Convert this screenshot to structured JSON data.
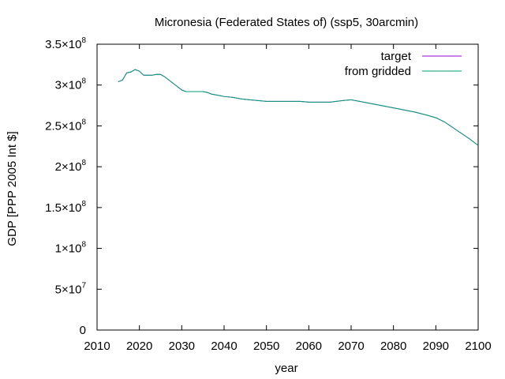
{
  "chart_data": {
    "type": "line",
    "title": "Micronesia (Federated States of) (ssp5, 30arcmin)",
    "xlabel": "year",
    "ylabel": "GDP [PPP 2005 Int $]",
    "xlim": [
      2010,
      2100
    ],
    "ylim": [
      0,
      350000000
    ],
    "x_ticks": [
      2010,
      2020,
      2030,
      2040,
      2050,
      2060,
      2070,
      2080,
      2090,
      2100
    ],
    "x_tick_labels": [
      "2010",
      "2020",
      "2030",
      "2040",
      "2050",
      "2060",
      "2070",
      "2080",
      "2090",
      "2100"
    ],
    "y_ticks": [
      0,
      50000000,
      100000000,
      150000000,
      200000000,
      250000000,
      300000000,
      350000000
    ],
    "y_tick_labels": [
      {
        "mantissa": "0",
        "exponent": ""
      },
      {
        "mantissa": "5×10",
        "exponent": "7"
      },
      {
        "mantissa": "1×10",
        "exponent": "8"
      },
      {
        "mantissa": "1.5×10",
        "exponent": "8"
      },
      {
        "mantissa": "2×10",
        "exponent": "8"
      },
      {
        "mantissa": "2.5×10",
        "exponent": "8"
      },
      {
        "mantissa": "3×10",
        "exponent": "8"
      },
      {
        "mantissa": "3.5×10",
        "exponent": "8"
      }
    ],
    "grid": false,
    "legend_position": "top-right",
    "series": [
      {
        "name": "target",
        "color": "#9400d3",
        "x": [
          2015,
          2016,
          2017,
          2018,
          2019,
          2020,
          2021,
          2022,
          2023,
          2024,
          2025,
          2026,
          2027,
          2028,
          2029,
          2030,
          2031,
          2032,
          2033,
          2034,
          2035,
          2036,
          2037,
          2038,
          2039,
          2040,
          2042,
          2044,
          2046,
          2048,
          2050,
          2055,
          2058,
          2060,
          2065,
          2068,
          2070,
          2075,
          2080,
          2085,
          2088,
          2090,
          2092,
          2094,
          2096,
          2098,
          2100
        ],
        "y": [
          304000000,
          306000000,
          315000000,
          316000000,
          319000000,
          317000000,
          312000000,
          312000000,
          312000000,
          313000000,
          313000000,
          310000000,
          306000000,
          302000000,
          298000000,
          294000000,
          292000000,
          292000000,
          292000000,
          292000000,
          292000000,
          291000000,
          289000000,
          288000000,
          287000000,
          286000000,
          285000000,
          283000000,
          282000000,
          281000000,
          280000000,
          280000000,
          280000000,
          279000000,
          279000000,
          281000000,
          282000000,
          277000000,
          272000000,
          267000000,
          263000000,
          260000000,
          255000000,
          248000000,
          241000000,
          234000000,
          226000000
        ]
      },
      {
        "name": "from gridded",
        "color": "#009e73",
        "x": [
          2015,
          2016,
          2017,
          2018,
          2019,
          2020,
          2021,
          2022,
          2023,
          2024,
          2025,
          2026,
          2027,
          2028,
          2029,
          2030,
          2031,
          2032,
          2033,
          2034,
          2035,
          2036,
          2037,
          2038,
          2039,
          2040,
          2042,
          2044,
          2046,
          2048,
          2050,
          2055,
          2058,
          2060,
          2065,
          2068,
          2070,
          2075,
          2080,
          2085,
          2088,
          2090,
          2092,
          2094,
          2096,
          2098,
          2100
        ],
        "y": [
          304000000,
          306000000,
          315000000,
          316000000,
          319000000,
          317000000,
          312000000,
          312000000,
          312000000,
          313000000,
          313000000,
          310000000,
          306000000,
          302000000,
          298000000,
          294000000,
          292000000,
          292000000,
          292000000,
          292000000,
          292000000,
          291000000,
          289000000,
          288000000,
          287000000,
          286000000,
          285000000,
          283000000,
          282000000,
          281000000,
          280000000,
          280000000,
          280000000,
          279000000,
          279000000,
          281000000,
          282000000,
          277000000,
          272000000,
          267000000,
          263000000,
          260000000,
          255000000,
          248000000,
          241000000,
          234000000,
          226000000
        ]
      }
    ]
  }
}
